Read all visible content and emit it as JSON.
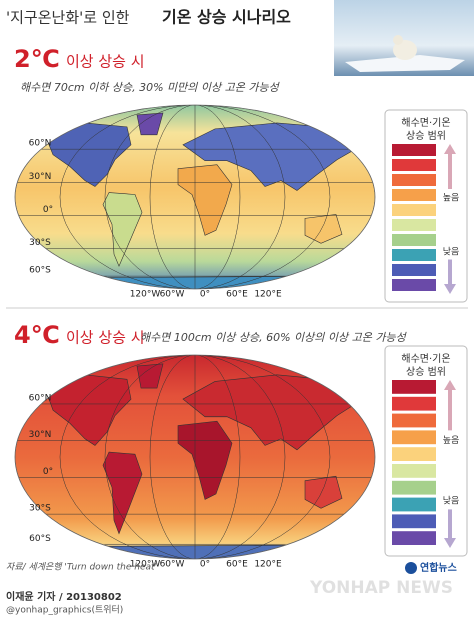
{
  "title": {
    "prefix": "'지구온난화'로 인한",
    "main": "기온 상승 시나리오"
  },
  "scenarios": [
    {
      "degree": "2℃",
      "heading": "이상 상승 시",
      "description": "해수면 70cm 이하 상승, 30% 미만의 이상 고온 가능성"
    },
    {
      "degree": "4℃",
      "heading": "이상 상승 시",
      "description": "해수면 100cm 이상 상승, 60% 이상의 이상 고온 가능성"
    }
  ],
  "latitudes": [
    "60°N",
    "30°N",
    "0°",
    "30°S",
    "60°S"
  ],
  "longitudes": [
    "120°W",
    "60°W",
    "0°",
    "60°E",
    "120°E"
  ],
  "legend": {
    "title": [
      "해수면·기온",
      "상승 범위"
    ],
    "high": "높음",
    "low": "낮음",
    "colors": [
      "#b81a33",
      "#e0393a",
      "#ef6a3b",
      "#f6a04a",
      "#fbd27c",
      "#d9e7a1",
      "#a6d08c",
      "#3ba2b4",
      "#4d5cb6",
      "#6a4aa8"
    ]
  },
  "footer": {
    "source": "자료/ 세계은행 'Turn down the heat'",
    "author": "이재윤 기자 / 20130802",
    "twitter": "@yonhap_graphics(트위터)",
    "brand": "연합뉴스",
    "watermark": "YONHAP NEWS"
  }
}
